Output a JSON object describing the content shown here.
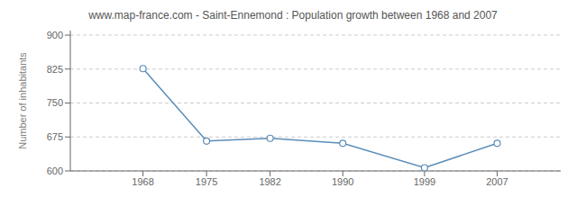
{
  "chart_data": {
    "type": "line",
    "title": "www.map-france.com - Saint-Ennemond : Population growth between 1968 and 2007",
    "ylabel": "Number of inhabitants",
    "x": [
      1968,
      1975,
      1982,
      1990,
      1999,
      2007
    ],
    "values": [
      826,
      666,
      672,
      661,
      607,
      661
    ],
    "xlim": [
      1960,
      2014
    ],
    "xticks": [
      1968,
      1975,
      1982,
      1990,
      1999,
      2007
    ],
    "ylim": [
      600,
      910
    ],
    "yticks": [
      600,
      675,
      750,
      825,
      900
    ],
    "color": "#5b8db8",
    "marker": "circle",
    "grid": true
  }
}
